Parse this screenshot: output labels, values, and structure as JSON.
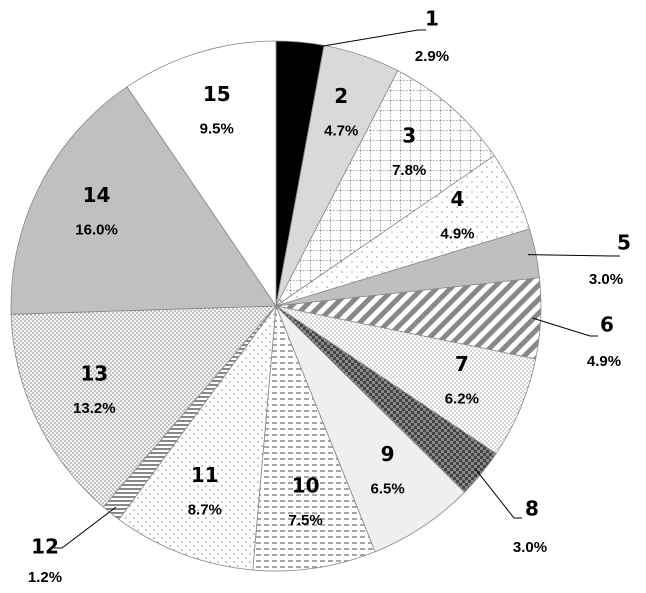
{
  "chart_data": {
    "type": "pie",
    "categories": [
      "1",
      "2",
      "3",
      "4",
      "5",
      "6",
      "7",
      "8",
      "9",
      "10",
      "11",
      "12",
      "13",
      "14",
      "15"
    ],
    "values": [
      2.9,
      4.7,
      7.8,
      4.9,
      3.0,
      4.9,
      6.2,
      3.0,
      6.5,
      7.5,
      8.7,
      1.2,
      13.2,
      16.0,
      9.5
    ],
    "value_labels": [
      "2.9%",
      "4.7%",
      "7.8%",
      "4.9%",
      "3.0%",
      "4.9%",
      "6.2%",
      "3.0%",
      "6.5%",
      "7.5%",
      "8.7%",
      "1.2%",
      "13.2%",
      "16.0%",
      "9.5%"
    ]
  }
}
